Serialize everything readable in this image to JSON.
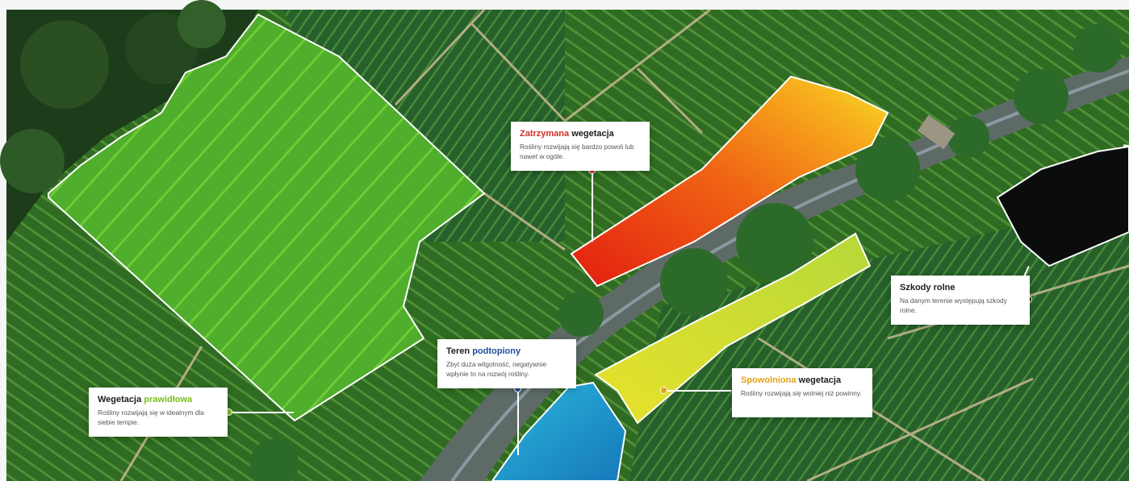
{
  "colors": {
    "red": "#d2302a",
    "blue": "#1e4f9c",
    "yellow": "#e0a417",
    "green": "#7bbd1e",
    "black": "#1a1a1a"
  },
  "labels": {
    "zatrzymana": {
      "highlight": "Zatrzymana",
      "rest": " wegetacja",
      "desc": "Rośliny rozwijają się bardzo powoli lub nawet w ogóle."
    },
    "teren": {
      "lead": "Teren ",
      "highlight": "podtopiony",
      "desc": "Zbyt duża wilgotność, negatywnie wpłynie to na rozwój rośliny."
    },
    "wegetacja": {
      "lead": "Wegetacja ",
      "highlight": "prawidłowa",
      "desc": "Rośliny rozwijają się w idealnym dla siebie tempie."
    },
    "spowolniona": {
      "highlight": "Spowolniona",
      "rest": " wegetacja",
      "desc": "Rośliny rozwijają się wolniej niż powinny."
    },
    "szkody": {
      "lead": "Szkody rolne",
      "desc": "Na danym terenie występują szkody rolne."
    }
  }
}
